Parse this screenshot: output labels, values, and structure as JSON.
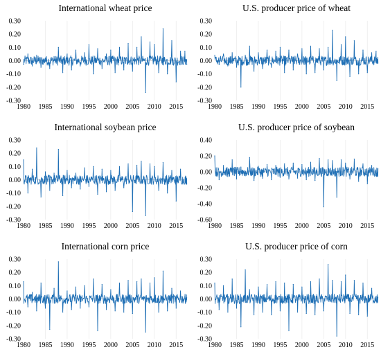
{
  "colors": {
    "line": "#1f6fb5",
    "zero_line": "#d9d9d9",
    "grid": "#ececec"
  },
  "chart_data": [
    {
      "type": "line",
      "title": "International wheat price",
      "xlabel": "",
      "ylabel": "",
      "xlim": [
        1980,
        2017.5
      ],
      "ylim": [
        -0.3,
        0.3
      ],
      "grid": true,
      "xticks": [
        1980,
        1985,
        1990,
        1995,
        2000,
        2005,
        2010,
        2015
      ],
      "xtick_labels": [
        "1980",
        "1985",
        "1990",
        "1995",
        "2000",
        "2005",
        "2010",
        "2015"
      ],
      "yticks": [
        -0.3,
        -0.2,
        -0.1,
        0.0,
        0.1,
        0.2,
        0.3
      ],
      "ytick_labels": [
        "-0.30",
        "-0.20",
        "-0.10",
        "0.00",
        "0.10",
        "0.20",
        "0.30"
      ],
      "series": [
        {
          "x": [
            1980.0,
            1981.0,
            1982.0,
            1983.0,
            1984.0,
            1985.0,
            1986.0,
            1987.0,
            1988.0,
            1989.0,
            1990.0,
            1991.0,
            1992.0,
            1993.0,
            1994.0,
            1995.0,
            1996.0,
            1997.0,
            1998.0,
            1999.0,
            2000.0,
            2001.0,
            2002.0,
            2003.0,
            2004.0,
            2005.0,
            2006.0,
            2007.0,
            2008.0,
            2009.0,
            2010.0,
            2011.0,
            2012.0,
            2013.0,
            2014.0,
            2015.0,
            2016.0,
            2017.0
          ],
          "values": [
            -0.03,
            0.05,
            -0.04,
            0.04,
            -0.05,
            0.02,
            -0.06,
            0.03,
            0.1,
            -0.09,
            0.05,
            -0.07,
            0.08,
            -0.04,
            0.06,
            0.12,
            -0.1,
            0.09,
            -0.06,
            0.05,
            0.08,
            -0.09,
            0.1,
            -0.07,
            0.13,
            -0.08,
            0.1,
            0.18,
            -0.24,
            0.14,
            0.12,
            -0.09,
            0.24,
            -0.1,
            0.15,
            -0.16,
            0.07,
            0.07
          ]
        }
      ]
    },
    {
      "type": "line",
      "title": "U.S. producer price of wheat",
      "xlabel": "",
      "ylabel": "",
      "xlim": [
        1980,
        2017.5
      ],
      "ylim": [
        -0.3,
        0.3
      ],
      "grid": true,
      "xticks": [
        1980,
        1985,
        1990,
        1995,
        2000,
        2005,
        2010,
        2015
      ],
      "xtick_labels": [
        "1980",
        "1985",
        "1990",
        "1995",
        "2000",
        "2005",
        "2010",
        "2015"
      ],
      "yticks": [
        -0.3,
        -0.2,
        -0.1,
        0.0,
        0.1,
        0.2,
        0.3
      ],
      "ytick_labels": [
        "-0.30",
        "-0.20",
        "-0.10",
        "0.00",
        "0.10",
        "0.20",
        "0.30"
      ],
      "series": [
        {
          "x": [
            1980.0,
            1981.0,
            1982.0,
            1983.0,
            1984.0,
            1985.0,
            1986.0,
            1987.0,
            1988.0,
            1989.0,
            1990.0,
            1991.0,
            1992.0,
            1993.0,
            1994.0,
            1995.0,
            1996.0,
            1997.0,
            1998.0,
            1999.0,
            2000.0,
            2001.0,
            2002.0,
            2003.0,
            2004.0,
            2005.0,
            2006.0,
            2007.0,
            2008.0,
            2009.0,
            2010.0,
            2011.0,
            2012.0,
            2013.0,
            2014.0,
            2015.0,
            2016.0,
            2017.0
          ],
          "values": [
            0.04,
            -0.03,
            0.05,
            -0.04,
            0.06,
            -0.05,
            -0.2,
            0.04,
            0.11,
            -0.08,
            0.06,
            -0.06,
            0.08,
            -0.05,
            0.07,
            0.1,
            -0.09,
            0.08,
            -0.07,
            0.05,
            0.09,
            -0.1,
            0.11,
            -0.09,
            0.09,
            -0.07,
            0.1,
            0.23,
            -0.15,
            0.12,
            0.18,
            -0.12,
            0.15,
            -0.1,
            0.08,
            -0.09,
            0.06,
            0.07
          ]
        }
      ]
    },
    {
      "type": "line",
      "title": "International soybean price",
      "xlabel": "",
      "ylabel": "",
      "xlim": [
        1980,
        2017.5
      ],
      "ylim": [
        -0.3,
        0.3
      ],
      "grid": true,
      "xticks": [
        1980,
        1985,
        1990,
        1995,
        2000,
        2005,
        2010,
        2015
      ],
      "xtick_labels": [
        "1980",
        "1985",
        "1990",
        "1995",
        "2000",
        "2005",
        "2010",
        "2015"
      ],
      "yticks": [
        -0.3,
        -0.2,
        -0.1,
        0.0,
        0.1,
        0.2,
        0.3
      ],
      "ytick_labels": [
        "-0.30",
        "-0.20",
        "-0.10",
        "0.00",
        "0.10",
        "0.20",
        "0.30"
      ],
      "series": [
        {
          "x": [
            1980.0,
            1981.0,
            1982.0,
            1983.0,
            1984.0,
            1985.0,
            1986.0,
            1987.0,
            1988.0,
            1989.0,
            1990.0,
            1991.0,
            1992.0,
            1993.0,
            1994.0,
            1995.0,
            1996.0,
            1997.0,
            1998.0,
            1999.0,
            2000.0,
            2001.0,
            2002.0,
            2003.0,
            2004.0,
            2005.0,
            2006.0,
            2007.0,
            2008.0,
            2009.0,
            2010.0,
            2011.0,
            2012.0,
            2013.0,
            2014.0,
            2015.0,
            2016.0,
            2017.0
          ],
          "values": [
            0.15,
            -0.1,
            0.08,
            0.24,
            -0.13,
            0.06,
            -0.08,
            0.05,
            0.23,
            -0.12,
            0.07,
            -0.06,
            0.05,
            -0.07,
            0.09,
            -0.05,
            0.1,
            -0.11,
            0.08,
            -0.09,
            0.07,
            -0.08,
            0.1,
            -0.06,
            0.12,
            -0.24,
            0.11,
            0.14,
            -0.27,
            0.12,
            0.1,
            -0.08,
            0.13,
            -0.1,
            0.07,
            -0.16,
            0.08,
            -0.03
          ]
        }
      ]
    },
    {
      "type": "line",
      "title": "U.S. producer price of soybean",
      "xlabel": "",
      "ylabel": "",
      "xlim": [
        1980,
        2017.5
      ],
      "ylim": [
        -0.6,
        0.4
      ],
      "grid": true,
      "xticks": [
        1980,
        1985,
        1990,
        1995,
        2000,
        2005,
        2010,
        2015
      ],
      "xtick_labels": [
        "1980",
        "1985",
        "1990",
        "1995",
        "2000",
        "2005",
        "2010",
        "2015"
      ],
      "yticks": [
        -0.6,
        -0.4,
        -0.2,
        0.0,
        0.2,
        0.4
      ],
      "ytick_labels": [
        "-0.60",
        "-0.40",
        "-0.20",
        "0.00",
        "0.20",
        "0.40"
      ],
      "series": [
        {
          "x": [
            1980.0,
            1981.0,
            1982.0,
            1983.0,
            1984.0,
            1985.0,
            1986.0,
            1987.0,
            1988.0,
            1989.0,
            1990.0,
            1991.0,
            1992.0,
            1993.0,
            1994.0,
            1995.0,
            1996.0,
            1997.0,
            1998.0,
            1999.0,
            2000.0,
            2001.0,
            2002.0,
            2003.0,
            2004.0,
            2005.0,
            2006.0,
            2007.0,
            2008.0,
            2009.0,
            2010.0,
            2011.0,
            2012.0,
            2013.0,
            2014.0,
            2015.0,
            2016.0,
            2017.0
          ],
          "values": [
            0.2,
            -0.1,
            0.08,
            -0.06,
            0.15,
            -0.09,
            0.06,
            -0.05,
            0.18,
            -0.11,
            0.07,
            -0.08,
            0.09,
            -0.1,
            0.08,
            -0.07,
            0.1,
            -0.09,
            0.11,
            -0.08,
            0.09,
            -0.1,
            0.12,
            -0.11,
            0.17,
            -0.44,
            0.15,
            0.14,
            -0.32,
            0.15,
            0.11,
            -0.09,
            0.16,
            -0.12,
            0.1,
            -0.15,
            0.08,
            -0.05
          ]
        }
      ]
    },
    {
      "type": "line",
      "title": "International corn price",
      "xlabel": "",
      "ylabel": "",
      "xlim": [
        1980,
        2017.5
      ],
      "ylim": [
        -0.3,
        0.3
      ],
      "grid": true,
      "xticks": [
        1980,
        1985,
        1990,
        1995,
        2000,
        2005,
        2010,
        2015
      ],
      "xtick_labels": [
        "1980",
        "1985",
        "1990",
        "1995",
        "2000",
        "2005",
        "2010",
        "2015"
      ],
      "yticks": [
        -0.3,
        -0.2,
        -0.1,
        0.0,
        0.1,
        0.2,
        0.3
      ],
      "ytick_labels": [
        "-0.30",
        "-0.20",
        "-0.10",
        "0.00",
        "0.10",
        "0.20",
        "0.30"
      ],
      "series": [
        {
          "x": [
            1980.0,
            1981.0,
            1982.0,
            1983.0,
            1984.0,
            1985.0,
            1986.0,
            1987.0,
            1988.0,
            1989.0,
            1990.0,
            1991.0,
            1992.0,
            1993.0,
            1994.0,
            1995.0,
            1996.0,
            1997.0,
            1998.0,
            1999.0,
            2000.0,
            2001.0,
            2002.0,
            2003.0,
            2004.0,
            2005.0,
            2006.0,
            2007.0,
            2008.0,
            2009.0,
            2010.0,
            2011.0,
            2012.0,
            2013.0,
            2014.0,
            2015.0,
            2016.0,
            2017.0
          ],
          "values": [
            0.13,
            -0.06,
            0.05,
            -0.09,
            0.12,
            -0.07,
            -0.23,
            0.08,
            0.28,
            -0.1,
            0.06,
            -0.08,
            0.09,
            -0.07,
            0.1,
            -0.06,
            0.15,
            -0.24,
            0.11,
            -0.08,
            0.07,
            -0.09,
            0.12,
            -0.1,
            0.14,
            -0.11,
            0.13,
            0.15,
            -0.25,
            0.12,
            0.16,
            -0.1,
            0.21,
            -0.09,
            0.08,
            -0.07,
            0.06,
            0.02
          ]
        }
      ]
    },
    {
      "type": "line",
      "title": "U.S. producer price of corn",
      "xlabel": "",
      "ylabel": "",
      "xlim": [
        1980,
        2017.5
      ],
      "ylim": [
        -0.3,
        0.3
      ],
      "grid": true,
      "xticks": [
        1980,
        1985,
        1990,
        1995,
        2000,
        2005,
        2010,
        2015
      ],
      "xtick_labels": [
        "1980",
        "1985",
        "1990",
        "1995",
        "2000",
        "2005",
        "2010",
        "2015"
      ],
      "yticks": [
        -0.3,
        -0.2,
        -0.1,
        0.0,
        0.1,
        0.2,
        0.3
      ],
      "ytick_labels": [
        "-0.30",
        "-0.20",
        "-0.10",
        "0.00",
        "0.10",
        "0.20",
        "0.30"
      ],
      "series": [
        {
          "x": [
            1980.0,
            1981.0,
            1982.0,
            1983.0,
            1984.0,
            1985.0,
            1986.0,
            1987.0,
            1988.0,
            1989.0,
            1990.0,
            1991.0,
            1992.0,
            1993.0,
            1994.0,
            1995.0,
            1996.0,
            1997.0,
            1998.0,
            1999.0,
            2000.0,
            2001.0,
            2002.0,
            2003.0,
            2004.0,
            2005.0,
            2006.0,
            2007.0,
            2008.0,
            2009.0,
            2010.0,
            2011.0,
            2012.0,
            2013.0,
            2014.0,
            2015.0,
            2016.0,
            2017.0
          ],
          "values": [
            0.12,
            -0.08,
            0.1,
            -0.1,
            0.15,
            -0.07,
            -0.21,
            0.22,
            0.07,
            -0.12,
            0.09,
            -0.1,
            0.11,
            -0.12,
            0.13,
            -0.09,
            0.12,
            -0.24,
            0.11,
            -0.1,
            0.09,
            -0.11,
            0.13,
            -0.12,
            0.15,
            -0.09,
            0.26,
            0.14,
            -0.28,
            0.13,
            0.18,
            -0.11,
            0.14,
            -0.12,
            0.12,
            -0.13,
            0.08,
            0.02
          ]
        }
      ]
    }
  ]
}
